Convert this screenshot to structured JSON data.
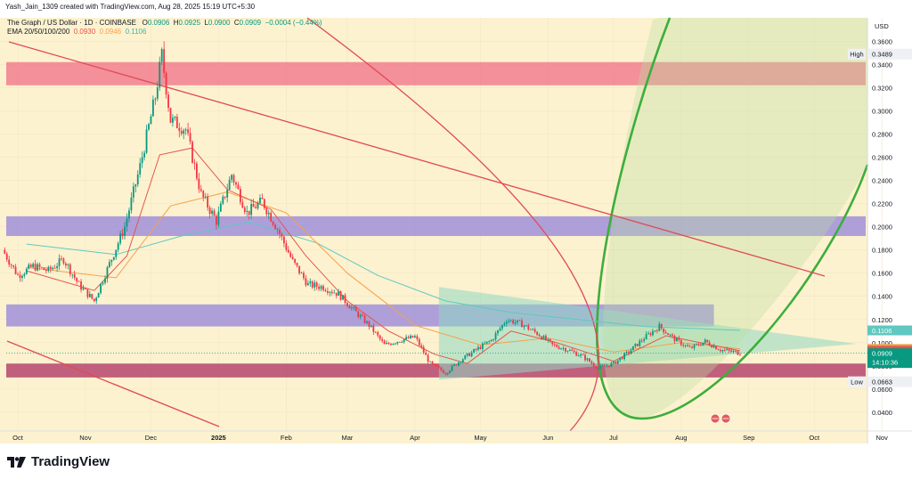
{
  "header": {
    "caption": "Yash_Jain_1309 created with TradingView.com, Aug 28, 2025 15:19 UTC+5:30"
  },
  "legend": {
    "symbol": "The Graph / US Dollar · 1D · COINBASE",
    "open_label": "O",
    "open": "0.0906",
    "high_label": "H",
    "high": "0.0925",
    "low_label": "L",
    "low": "0.0900",
    "close_label": "C",
    "close": "0.0909",
    "change": "−0.0004 (−0.44%)",
    "ema_label": "EMA 20/50/100/200",
    "ema20": "0.0930",
    "ema50": "0.0946",
    "ema100": "0.1106"
  },
  "brand": {
    "name": "TradingView"
  },
  "colors": {
    "background": "#fdf2cf",
    "up": "#089981",
    "down": "#f23645",
    "ema20": "#e2574c",
    "ema50": "#f5a04b",
    "ema100": "#5fc8c0",
    "zone_red": "#f07a8c",
    "zone_purple": "#9c8cdb",
    "zone_maroon": "#b2406a",
    "wedge": "#8fd8c2",
    "parabola": "#3cae3c"
  },
  "chart_data": {
    "type": "candlestick",
    "pair": "GRT/USD",
    "interval": "1D",
    "currency_label": "USD",
    "ylim": [
      0.04,
      0.38
    ],
    "y_ticks": [
      "0.0400",
      "0.0600",
      "0.0800",
      "0.1000",
      "0.1200",
      "0.1400",
      "0.1600",
      "0.1800",
      "0.2000",
      "0.2200",
      "0.2400",
      "0.2600",
      "0.2800",
      "0.3000",
      "0.3200",
      "0.3400",
      "0.3600"
    ],
    "x_ticks": [
      {
        "label": "Oct",
        "date": "2024-10-01"
      },
      {
        "label": "Nov",
        "date": "2024-11-01"
      },
      {
        "label": "Dec",
        "date": "2024-12-01"
      },
      {
        "label": "2025",
        "date": "2025-01-01"
      },
      {
        "label": "Feb",
        "date": "2025-02-01"
      },
      {
        "label": "Mar",
        "date": "2025-03-01"
      },
      {
        "label": "Apr",
        "date": "2025-04-01"
      },
      {
        "label": "May",
        "date": "2025-05-01"
      },
      {
        "label": "Jun",
        "date": "2025-06-01"
      },
      {
        "label": "Jul",
        "date": "2025-07-01"
      },
      {
        "label": "Aug",
        "date": "2025-08-01"
      },
      {
        "label": "Sep",
        "date": "2025-09-01"
      },
      {
        "label": "Oct",
        "date": "2025-10-01"
      },
      {
        "label": "Nov",
        "date": "2025-11-01"
      }
    ],
    "close_series": [
      {
        "date": "2024-09-24",
        "close": 0.18
      },
      {
        "date": "2024-10-01",
        "close": 0.158
      },
      {
        "date": "2024-10-08",
        "close": 0.166
      },
      {
        "date": "2024-10-15",
        "close": 0.162
      },
      {
        "date": "2024-10-22",
        "close": 0.172
      },
      {
        "date": "2024-10-29",
        "close": 0.15
      },
      {
        "date": "2024-11-05",
        "close": 0.136
      },
      {
        "date": "2024-11-12",
        "close": 0.168
      },
      {
        "date": "2024-11-19",
        "close": 0.2
      },
      {
        "date": "2024-11-26",
        "close": 0.252
      },
      {
        "date": "2024-12-03",
        "close": 0.312
      },
      {
        "date": "2024-12-06",
        "close": 0.348
      },
      {
        "date": "2024-12-10",
        "close": 0.292
      },
      {
        "date": "2024-12-17",
        "close": 0.284
      },
      {
        "date": "2024-12-24",
        "close": 0.228
      },
      {
        "date": "2024-12-31",
        "close": 0.205
      },
      {
        "date": "2025-01-07",
        "close": 0.245
      },
      {
        "date": "2025-01-14",
        "close": 0.212
      },
      {
        "date": "2025-01-21",
        "close": 0.222
      },
      {
        "date": "2025-01-28",
        "close": 0.198
      },
      {
        "date": "2025-02-04",
        "close": 0.17
      },
      {
        "date": "2025-02-11",
        "close": 0.15
      },
      {
        "date": "2025-02-18",
        "close": 0.148
      },
      {
        "date": "2025-02-25",
        "close": 0.142
      },
      {
        "date": "2025-03-04",
        "close": 0.128
      },
      {
        "date": "2025-03-11",
        "close": 0.115
      },
      {
        "date": "2025-03-18",
        "close": 0.098
      },
      {
        "date": "2025-03-25",
        "close": 0.102
      },
      {
        "date": "2025-04-01",
        "close": 0.105
      },
      {
        "date": "2025-04-08",
        "close": 0.082
      },
      {
        "date": "2025-04-15",
        "close": 0.074
      },
      {
        "date": "2025-04-22",
        "close": 0.085
      },
      {
        "date": "2025-04-29",
        "close": 0.094
      },
      {
        "date": "2025-05-06",
        "close": 0.102
      },
      {
        "date": "2025-05-13",
        "close": 0.12
      },
      {
        "date": "2025-05-20",
        "close": 0.116
      },
      {
        "date": "2025-05-27",
        "close": 0.108
      },
      {
        "date": "2025-06-03",
        "close": 0.098
      },
      {
        "date": "2025-06-10",
        "close": 0.094
      },
      {
        "date": "2025-06-17",
        "close": 0.088
      },
      {
        "date": "2025-06-24",
        "close": 0.078
      },
      {
        "date": "2025-07-01",
        "close": 0.082
      },
      {
        "date": "2025-07-08",
        "close": 0.092
      },
      {
        "date": "2025-07-15",
        "close": 0.104
      },
      {
        "date": "2025-07-22",
        "close": 0.114
      },
      {
        "date": "2025-07-29",
        "close": 0.103
      },
      {
        "date": "2025-08-05",
        "close": 0.095
      },
      {
        "date": "2025-08-12",
        "close": 0.101
      },
      {
        "date": "2025-08-19",
        "close": 0.094
      },
      {
        "date": "2025-08-28",
        "close": 0.0909
      }
    ],
    "ema_series": {
      "ema20": [
        {
          "date": "2024-10-05",
          "value": 0.162
        },
        {
          "date": "2024-11-05",
          "value": 0.145
        },
        {
          "date": "2024-11-20",
          "value": 0.175
        },
        {
          "date": "2024-12-05",
          "value": 0.262
        },
        {
          "date": "2024-12-20",
          "value": 0.268
        },
        {
          "date": "2025-01-05",
          "value": 0.232
        },
        {
          "date": "2025-01-25",
          "value": 0.215
        },
        {
          "date": "2025-02-10",
          "value": 0.175
        },
        {
          "date": "2025-03-01",
          "value": 0.136
        },
        {
          "date": "2025-03-20",
          "value": 0.11
        },
        {
          "date": "2025-04-10",
          "value": 0.09
        },
        {
          "date": "2025-04-25",
          "value": 0.082
        },
        {
          "date": "2025-05-15",
          "value": 0.11
        },
        {
          "date": "2025-06-05",
          "value": 0.1
        },
        {
          "date": "2025-07-01",
          "value": 0.084
        },
        {
          "date": "2025-07-25",
          "value": 0.106
        },
        {
          "date": "2025-08-28",
          "value": 0.093
        }
      ],
      "ema50": [
        {
          "date": "2024-10-05",
          "value": 0.165
        },
        {
          "date": "2024-11-15",
          "value": 0.156
        },
        {
          "date": "2024-12-10",
          "value": 0.218
        },
        {
          "date": "2025-01-05",
          "value": 0.23
        },
        {
          "date": "2025-02-01",
          "value": 0.212
        },
        {
          "date": "2025-03-01",
          "value": 0.16
        },
        {
          "date": "2025-04-01",
          "value": 0.115
        },
        {
          "date": "2025-05-01",
          "value": 0.098
        },
        {
          "date": "2025-06-01",
          "value": 0.104
        },
        {
          "date": "2025-07-01",
          "value": 0.092
        },
        {
          "date": "2025-08-01",
          "value": 0.1
        },
        {
          "date": "2025-08-28",
          "value": 0.0946
        }
      ],
      "ema100": [
        {
          "date": "2024-10-05",
          "value": 0.185
        },
        {
          "date": "2024-11-15",
          "value": 0.176
        },
        {
          "date": "2024-12-15",
          "value": 0.192
        },
        {
          "date": "2025-01-15",
          "value": 0.204
        },
        {
          "date": "2025-02-15",
          "value": 0.186
        },
        {
          "date": "2025-03-15",
          "value": 0.158
        },
        {
          "date": "2025-04-15",
          "value": 0.136
        },
        {
          "date": "2025-05-15",
          "value": 0.126
        },
        {
          "date": "2025-06-15",
          "value": 0.12
        },
        {
          "date": "2025-07-15",
          "value": 0.114
        },
        {
          "date": "2025-08-28",
          "value": 0.1106
        }
      ]
    },
    "zones": [
      {
        "name": "resistance-red",
        "from": 0.322,
        "to": 0.342
      },
      {
        "name": "resistance-purple",
        "from": 0.192,
        "to": 0.209
      },
      {
        "name": "support-purple",
        "from": 0.114,
        "to": 0.133
      },
      {
        "name": "support-maroon",
        "from": 0.07,
        "to": 0.082
      }
    ],
    "price_labels": [
      {
        "text": "High",
        "value": "0.3489"
      },
      {
        "text": "",
        "value": "0.1106",
        "color": "ema100"
      },
      {
        "text": "",
        "value": "0.0946",
        "color": "ema50"
      },
      {
        "text": "",
        "value": "0.0930",
        "color": "ema20"
      },
      {
        "text": "",
        "value": "0.0909",
        "color": "up",
        "countdown": "14:10:36"
      },
      {
        "text": "Low",
        "value": "0.0663"
      }
    ]
  }
}
